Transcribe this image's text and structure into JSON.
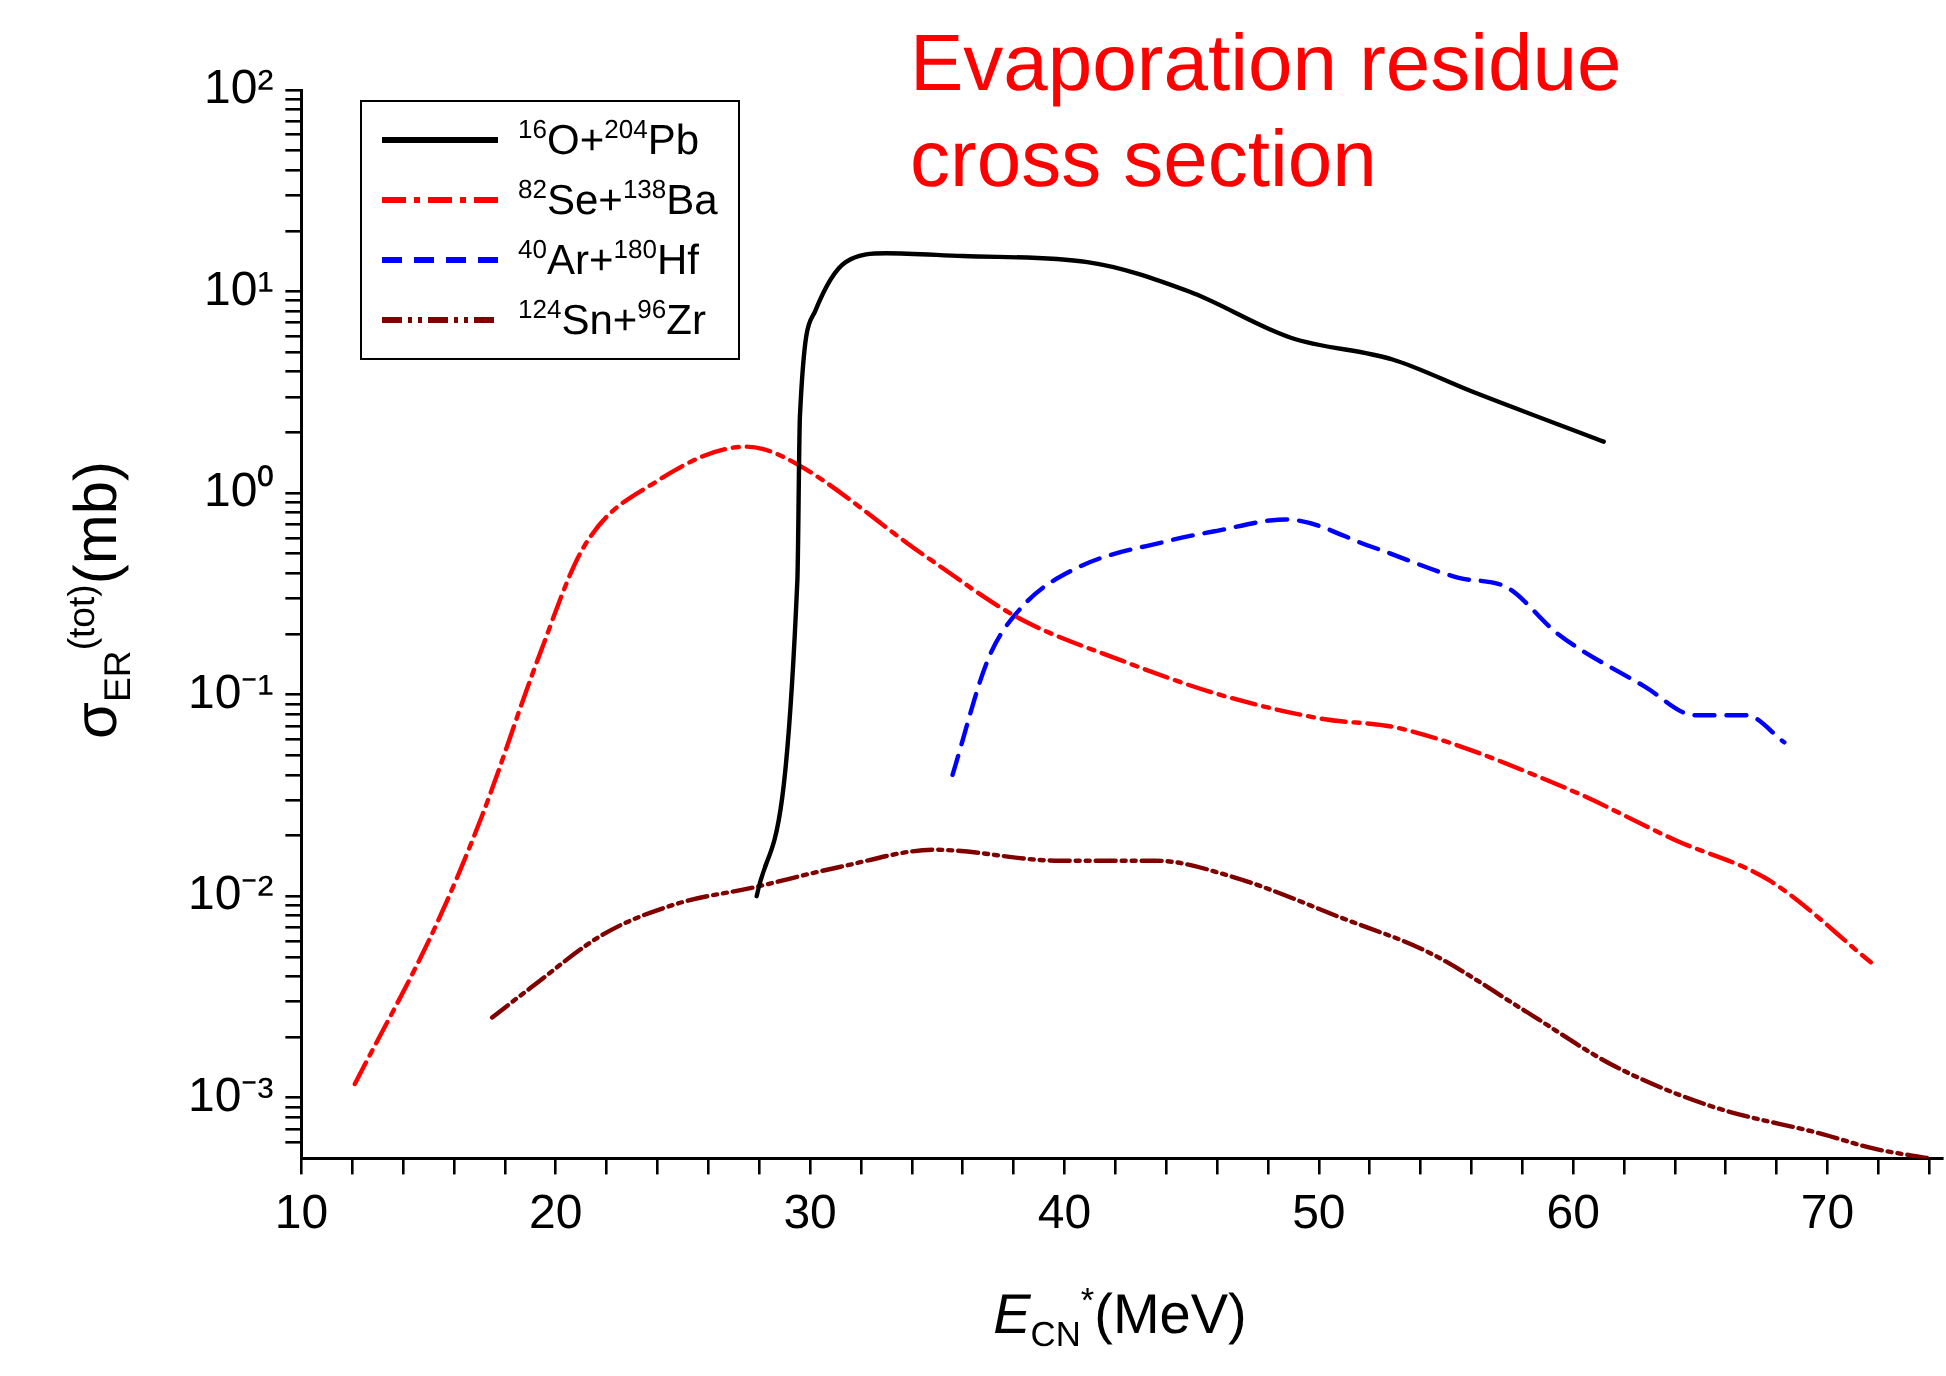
{
  "chart_data": {
    "type": "line",
    "title": "Evaporation residue cross section",
    "xlabel": "E$_{CN}$$^{*}$(MeV)",
    "ylabel": "σ$_{ER}$$^{(tot)}$(mb)",
    "log": "y",
    "grid": false,
    "legend": "top left",
    "marker": "none",
    "xlim": [
      10,
      74.5
    ],
    "ylim": [
      0.0005,
      100
    ],
    "xticks": [
      10,
      {
        "value": 12,
        "label": null
      },
      {
        "value": 14,
        "label": null
      },
      {
        "value": 16,
        "label": null
      },
      {
        "value": 18,
        "label": null
      },
      20,
      {
        "value": 22,
        "label": null
      },
      {
        "value": 24,
        "label": null
      },
      {
        "value": 26,
        "label": null
      },
      {
        "value": 28,
        "label": null
      },
      30,
      {
        "value": 32,
        "label": null
      },
      {
        "value": 34,
        "label": null
      },
      {
        "value": 36,
        "label": null
      },
      {
        "value": 38,
        "label": null
      },
      40,
      {
        "value": 42,
        "label": null
      },
      {
        "value": 44,
        "label": null
      },
      {
        "value": 46,
        "label": null
      },
      {
        "value": 48,
        "label": null
      },
      50,
      {
        "value": 52,
        "label": null
      },
      {
        "value": 54,
        "label": null
      },
      {
        "value": 56,
        "label": null
      },
      {
        "value": 58,
        "label": null
      },
      60,
      {
        "value": 62,
        "label": null
      },
      {
        "value": 64,
        "label": null
      },
      {
        "value": 66,
        "label": null
      },
      {
        "value": 68,
        "label": null
      },
      70,
      {
        "value": 72,
        "label": null
      },
      {
        "value": 74,
        "label": null
      }
    ],
    "yticks": [
      {
        "value": 0.0006,
        "label": null
      },
      {
        "value": 0.0007,
        "label": null
      },
      {
        "value": 0.0008,
        "label": null
      },
      {
        "value": 0.0009,
        "label": null
      },
      {
        "value": 0.001,
        "label": "10⁻³"
      },
      {
        "value": 0.002,
        "label": null
      },
      {
        "value": 0.003,
        "label": null
      },
      {
        "value": 0.004,
        "label": null
      },
      {
        "value": 0.005,
        "label": null
      },
      {
        "value": 0.006,
        "label": null
      },
      {
        "value": 0.007,
        "label": null
      },
      {
        "value": 0.008,
        "label": null
      },
      {
        "value": 0.009,
        "label": null
      },
      {
        "value": 0.01,
        "label": "10⁻²"
      },
      {
        "value": 0.02,
        "label": null
      },
      {
        "value": 0.03,
        "label": null
      },
      {
        "value": 0.04,
        "label": null
      },
      {
        "value": 0.05,
        "label": null
      },
      {
        "value": 0.06,
        "label": null
      },
      {
        "value": 0.07,
        "label": null
      },
      {
        "value": 0.08,
        "label": null
      },
      {
        "value": 0.09,
        "label": null
      },
      {
        "value": 0.1,
        "label": "10⁻¹"
      },
      {
        "value": 0.2,
        "label": null
      },
      {
        "value": 0.3,
        "label": null
      },
      {
        "value": 0.4,
        "label": null
      },
      {
        "value": 0.5,
        "label": null
      },
      {
        "value": 0.6,
        "label": null
      },
      {
        "value": 0.7,
        "label": null
      },
      {
        "value": 0.8,
        "label": null
      },
      {
        "value": 0.9,
        "label": null
      },
      {
        "value": 1,
        "label": "10⁰"
      },
      {
        "value": 2,
        "label": null
      },
      {
        "value": 3,
        "label": null
      },
      {
        "value": 4,
        "label": null
      },
      {
        "value": 5,
        "label": null
      },
      {
        "value": 6,
        "label": null
      },
      {
        "value": 7,
        "label": null
      },
      {
        "value": 8,
        "label": null
      },
      {
        "value": 9,
        "label": null
      },
      {
        "value": 10,
        "label": "10¹"
      },
      {
        "value": 20,
        "label": null
      },
      {
        "value": 30,
        "label": null
      },
      {
        "value": 40,
        "label": null
      },
      {
        "value": 50,
        "label": null
      },
      {
        "value": 60,
        "label": null
      },
      {
        "value": 70,
        "label": null
      },
      {
        "value": 80,
        "label": null
      },
      {
        "value": 90,
        "label": null
      },
      {
        "value": 100,
        "label": "10²"
      }
    ],
    "series": [
      {
        "name": "$^{16}$O+$^{204}$Pb",
        "color": "#000000",
        "line_style": "solid",
        "x": [
          27.9,
          29.5,
          29.6,
          30.2,
          31.4,
          33,
          36,
          40.9,
          44.9,
          48.9,
          52.9,
          56,
          61.2
        ],
        "values": [
          0.01,
          0.37,
          2.4,
          8,
          14,
          15.5,
          15,
          14,
          10,
          5.9,
          4.6,
          3.2,
          1.8
        ]
      },
      {
        "name": "$^{82}$Se+$^{138}$Ba",
        "color": "#ff0000",
        "line_style": "dashdot",
        "x": [
          12.1,
          15.3,
          17.1,
          19.3,
          21.1,
          24,
          27.5,
          29,
          34.6,
          38.2,
          42.1,
          46.1,
          50.1,
          53.2,
          59.8,
          64,
          67.7,
          71.7
        ],
        "values": [
          0.00117,
          0.0072,
          0.025,
          0.15,
          0.54,
          1.15,
          1.7,
          1.5,
          0.48,
          0.24,
          0.15,
          0.1,
          0.076,
          0.068,
          0.034,
          0.019,
          0.012,
          0.0047
        ]
      },
      {
        "name": "$^{40}$Ar+$^{180}$Hf",
        "color": "#0000ff",
        "line_style": "dashed",
        "x": [
          35.6,
          37,
          38.3,
          40.4,
          44.1,
          46,
          48.7,
          52.1,
          55.5,
          57.4,
          59.4,
          62.8,
          64.8,
          66.8,
          68.3
        ],
        "values": [
          0.04,
          0.15,
          0.27,
          0.42,
          0.58,
          0.65,
          0.74,
          0.54,
          0.38,
          0.34,
          0.2,
          0.11,
          0.079,
          0.079,
          0.058
        ]
      },
      {
        "name": "$^{124}$Sn+$^{96}$Zr",
        "color": "#800000",
        "line_style": "dashdotdot",
        "x": [
          17.5,
          19,
          21.9,
          24.8,
          27.7,
          31.2,
          34.9,
          39.8,
          43.6,
          46.5,
          50.9,
          54.4,
          58.1,
          61.6,
          65.4,
          69.8,
          71.8,
          74
        ],
        "values": [
          0.0025,
          0.0035,
          0.0065,
          0.0092,
          0.011,
          0.014,
          0.017,
          0.015,
          0.015,
          0.0126,
          0.0078,
          0.0052,
          0.0027,
          0.00144,
          0.00091,
          0.00066,
          0.00056,
          0.0005
        ]
      }
    ]
  }
}
